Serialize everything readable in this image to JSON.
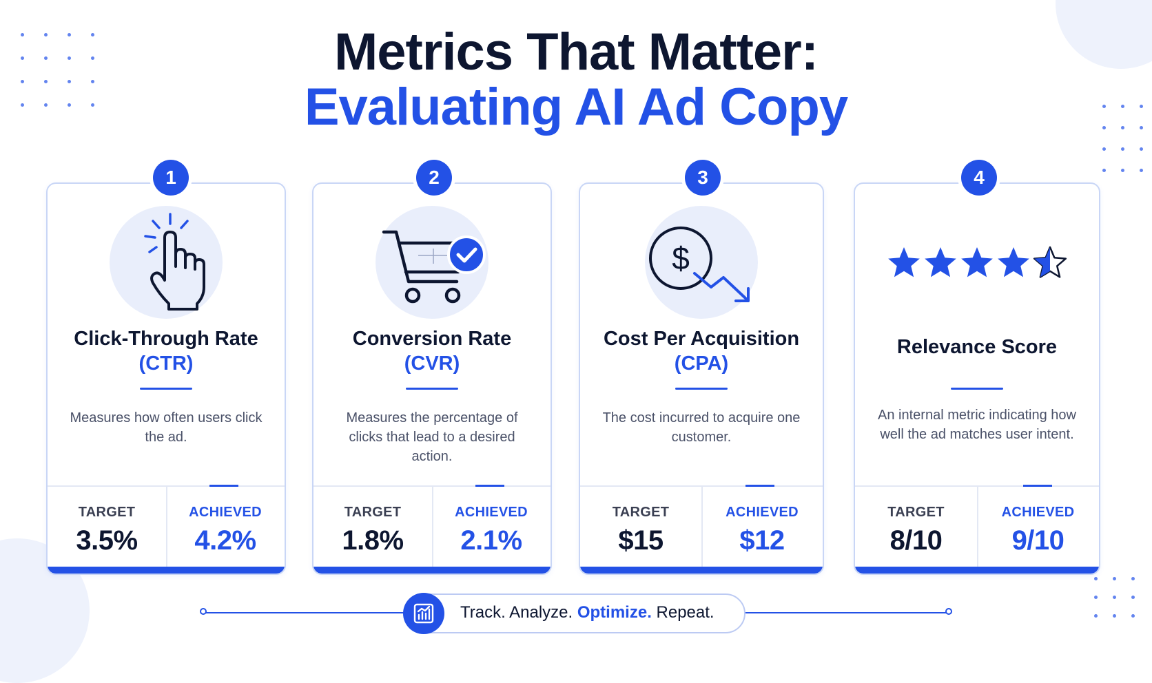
{
  "header": {
    "title_line1": "Metrics That Matter:",
    "title_line2": "Evaluating AI Ad Copy"
  },
  "colors": {
    "accent": "#2351e6",
    "dark": "#0d1630",
    "muted_text": "#4a5168",
    "icon_bg": "#e9eefb"
  },
  "cards": [
    {
      "number": "1",
      "icon": "pointer-click-icon",
      "name": "Click-Through Rate",
      "abbr": "(CTR)",
      "description": "Measures how often users click the ad.",
      "target_label": "TARGET",
      "target_value": "3.5%",
      "achieved_label": "ACHIEVED",
      "achieved_value": "4.2%"
    },
    {
      "number": "2",
      "icon": "shopping-cart-check-icon",
      "name": "Conversion Rate",
      "abbr": "(CVR)",
      "description": "Measures the percentage of clicks that lead to a desired action.",
      "target_label": "TARGET",
      "target_value": "1.8%",
      "achieved_label": "ACHIEVED",
      "achieved_value": "2.1%"
    },
    {
      "number": "3",
      "icon": "dollar-down-trend-icon",
      "name": "Cost Per Acquisition",
      "abbr": "(CPA)",
      "description": "The cost incurred to acquire one customer.",
      "target_label": "TARGET",
      "target_value": "$15",
      "achieved_label": "ACHIEVED",
      "achieved_value": "$12"
    },
    {
      "number": "4",
      "icon": "star-rating-icon",
      "rating_stars": 4.5,
      "name": "Relevance Score",
      "abbr": "",
      "description": "An internal metric indicating how well the ad matches user intent.",
      "target_label": "TARGET",
      "target_value": "8/10",
      "achieved_label": "ACHIEVED",
      "achieved_value": "9/10"
    }
  ],
  "footer": {
    "icon": "bar-chart-icon",
    "text_part1": "Track. Analyze.",
    "text_highlight": "Optimize.",
    "text_part2": "Repeat."
  }
}
